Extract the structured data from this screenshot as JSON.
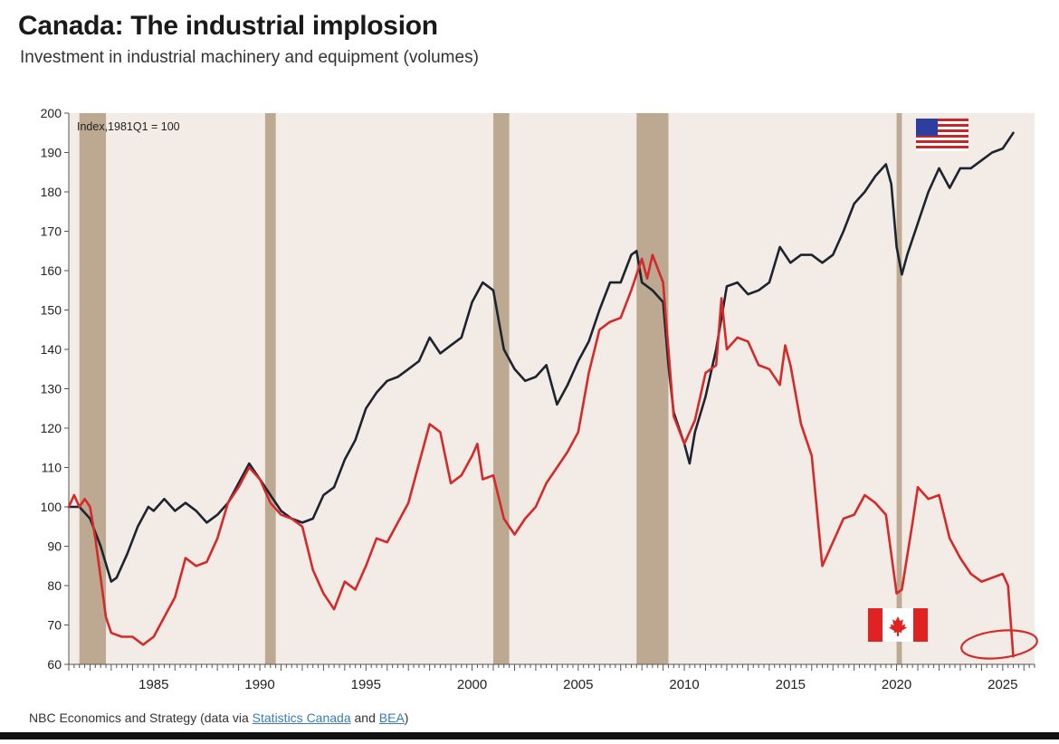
{
  "header": {
    "title": "Canada: The industrial implosion",
    "subtitle": "Investment in industrial machinery and equipment (volumes)"
  },
  "footer": {
    "prefix": "NBC Economics and Strategy (data via ",
    "link1": "Statistics Canada",
    "middle": " and ",
    "link2": "BEA",
    "suffix": ")"
  },
  "colors": {
    "plot_bg": "#f3ebe5",
    "recession": "#bda992",
    "us_line": "#1c2430",
    "canada_line": "#d42a2a",
    "circle": "#d42a2a"
  },
  "icons": {
    "us": "us-flag-icon",
    "canada": "canada-flag-icon",
    "circle": "highlight-circle-icon"
  },
  "chart_data": {
    "type": "line",
    "title": "Canada: The industrial implosion",
    "subtitle": "Investment in industrial machinery and equipment (volumes)",
    "annotation": "Index,1981Q1 = 100",
    "xlabel": "",
    "ylabel": "",
    "xlim": [
      1981,
      2026.5
    ],
    "ylim": [
      60,
      200
    ],
    "yticks": [
      60,
      70,
      80,
      90,
      100,
      110,
      120,
      130,
      140,
      150,
      160,
      170,
      180,
      190,
      200
    ],
    "xtick_labels": [
      "1985",
      "1990",
      "1995",
      "2000",
      "2005",
      "2010",
      "2015",
      "2020",
      "2025"
    ],
    "grid": false,
    "recessions": [
      [
        1981.5,
        1982.75
      ],
      [
        1990.25,
        1990.75
      ],
      [
        2001.0,
        2001.75
      ],
      [
        2007.75,
        2009.25
      ],
      [
        2020.0,
        2020.25
      ]
    ],
    "series": [
      {
        "name": "United States",
        "points": [
          [
            1981,
            100
          ],
          [
            1981.5,
            100
          ],
          [
            1982,
            97
          ],
          [
            1982.5,
            90
          ],
          [
            1983,
            81
          ],
          [
            1983.25,
            82
          ],
          [
            1983.75,
            88
          ],
          [
            1984.25,
            95
          ],
          [
            1984.75,
            100
          ],
          [
            1985,
            99
          ],
          [
            1985.5,
            102
          ],
          [
            1986,
            99
          ],
          [
            1986.5,
            101
          ],
          [
            1987,
            99
          ],
          [
            1987.5,
            96
          ],
          [
            1988,
            98
          ],
          [
            1988.5,
            101
          ],
          [
            1989,
            106
          ],
          [
            1989.5,
            111
          ],
          [
            1990,
            107
          ],
          [
            1990.5,
            103
          ],
          [
            1991,
            99
          ],
          [
            1991.5,
            97
          ],
          [
            1992,
            96
          ],
          [
            1992.5,
            97
          ],
          [
            1993,
            103
          ],
          [
            1993.5,
            105
          ],
          [
            1994,
            112
          ],
          [
            1994.5,
            117
          ],
          [
            1995,
            125
          ],
          [
            1995.5,
            129
          ],
          [
            1996,
            132
          ],
          [
            1996.5,
            133
          ],
          [
            1997,
            135
          ],
          [
            1997.5,
            137
          ],
          [
            1998,
            143
          ],
          [
            1998.5,
            139
          ],
          [
            1999,
            141
          ],
          [
            1999.5,
            143
          ],
          [
            2000,
            152
          ],
          [
            2000.5,
            157
          ],
          [
            2001,
            155
          ],
          [
            2001.5,
            140
          ],
          [
            2002,
            135
          ],
          [
            2002.5,
            132
          ],
          [
            2003,
            133
          ],
          [
            2003.5,
            136
          ],
          [
            2004,
            126
          ],
          [
            2004.5,
            131
          ],
          [
            2005,
            137
          ],
          [
            2005.5,
            142
          ],
          [
            2006,
            150
          ],
          [
            2006.5,
            157
          ],
          [
            2007,
            157
          ],
          [
            2007.5,
            164
          ],
          [
            2007.75,
            165
          ],
          [
            2008,
            157
          ],
          [
            2008.5,
            155
          ],
          [
            2009,
            152
          ],
          [
            2009.25,
            136
          ],
          [
            2009.5,
            124
          ],
          [
            2010,
            116
          ],
          [
            2010.25,
            111
          ],
          [
            2010.5,
            119
          ],
          [
            2011,
            128
          ],
          [
            2011.5,
            140
          ],
          [
            2011.75,
            148
          ],
          [
            2012,
            156
          ],
          [
            2012.5,
            157
          ],
          [
            2013,
            154
          ],
          [
            2013.5,
            155
          ],
          [
            2014,
            157
          ],
          [
            2014.5,
            166
          ],
          [
            2015,
            162
          ],
          [
            2015.5,
            164
          ],
          [
            2016,
            164
          ],
          [
            2016.5,
            162
          ],
          [
            2017,
            164
          ],
          [
            2017.5,
            170
          ],
          [
            2018,
            177
          ],
          [
            2018.5,
            180
          ],
          [
            2019,
            184
          ],
          [
            2019.5,
            187
          ],
          [
            2019.75,
            182
          ],
          [
            2020,
            166
          ],
          [
            2020.25,
            159
          ],
          [
            2020.5,
            164
          ],
          [
            2021,
            172
          ],
          [
            2021.5,
            180
          ],
          [
            2022,
            186
          ],
          [
            2022.5,
            181
          ],
          [
            2023,
            186
          ],
          [
            2023.5,
            186
          ],
          [
            2024,
            188
          ],
          [
            2024.5,
            190
          ],
          [
            2025,
            191
          ],
          [
            2025.5,
            195
          ]
        ]
      },
      {
        "name": "Canada",
        "points": [
          [
            1981,
            100
          ],
          [
            1981.25,
            103
          ],
          [
            1981.5,
            100
          ],
          [
            1981.75,
            102
          ],
          [
            1982,
            100
          ],
          [
            1982.25,
            92
          ],
          [
            1982.5,
            82
          ],
          [
            1982.75,
            72
          ],
          [
            1983,
            68
          ],
          [
            1983.5,
            67
          ],
          [
            1984,
            67
          ],
          [
            1984.5,
            65
          ],
          [
            1985,
            67
          ],
          [
            1985.5,
            72
          ],
          [
            1986,
            77
          ],
          [
            1986.5,
            87
          ],
          [
            1987,
            85
          ],
          [
            1987.5,
            86
          ],
          [
            1988,
            92
          ],
          [
            1988.5,
            101
          ],
          [
            1989,
            105
          ],
          [
            1989.5,
            110
          ],
          [
            1990,
            107
          ],
          [
            1990.5,
            101
          ],
          [
            1991,
            98
          ],
          [
            1991.5,
            97
          ],
          [
            1992,
            95
          ],
          [
            1992.5,
            84
          ],
          [
            1993,
            78
          ],
          [
            1993.5,
            74
          ],
          [
            1994,
            81
          ],
          [
            1994.5,
            79
          ],
          [
            1995,
            85
          ],
          [
            1995.5,
            92
          ],
          [
            1996,
            91
          ],
          [
            1996.5,
            96
          ],
          [
            1997,
            101
          ],
          [
            1997.5,
            111
          ],
          [
            1998,
            121
          ],
          [
            1998.5,
            119
          ],
          [
            1999,
            106
          ],
          [
            1999.5,
            108
          ],
          [
            2000,
            113
          ],
          [
            2000.25,
            116
          ],
          [
            2000.5,
            107
          ],
          [
            2001,
            108
          ],
          [
            2001.5,
            97
          ],
          [
            2002,
            93
          ],
          [
            2002.5,
            97
          ],
          [
            2003,
            100
          ],
          [
            2003.5,
            106
          ],
          [
            2004,
            110
          ],
          [
            2004.5,
            114
          ],
          [
            2005,
            119
          ],
          [
            2005.5,
            134
          ],
          [
            2006,
            145
          ],
          [
            2006.5,
            147
          ],
          [
            2007,
            148
          ],
          [
            2007.5,
            155
          ],
          [
            2008,
            163
          ],
          [
            2008.25,
            158
          ],
          [
            2008.5,
            164
          ],
          [
            2009,
            157
          ],
          [
            2009.25,
            140
          ],
          [
            2009.5,
            123
          ],
          [
            2010,
            116
          ],
          [
            2010.5,
            122
          ],
          [
            2011,
            134
          ],
          [
            2011.5,
            136
          ],
          [
            2011.75,
            153
          ],
          [
            2012,
            140
          ],
          [
            2012.5,
            143
          ],
          [
            2013,
            142
          ],
          [
            2013.5,
            136
          ],
          [
            2014,
            135
          ],
          [
            2014.5,
            131
          ],
          [
            2014.75,
            141
          ],
          [
            2015,
            136
          ],
          [
            2015.5,
            121
          ],
          [
            2016,
            113
          ],
          [
            2016.5,
            85
          ],
          [
            2017,
            91
          ],
          [
            2017.5,
            97
          ],
          [
            2018,
            98
          ],
          [
            2018.5,
            103
          ],
          [
            2019,
            101
          ],
          [
            2019.5,
            98
          ],
          [
            2019.75,
            88
          ],
          [
            2020,
            78
          ],
          [
            2020.25,
            79
          ],
          [
            2020.75,
            96
          ],
          [
            2021,
            105
          ],
          [
            2021.5,
            102
          ],
          [
            2022,
            103
          ],
          [
            2022.5,
            92
          ],
          [
            2023,
            87
          ],
          [
            2023.5,
            83
          ],
          [
            2024,
            81
          ],
          [
            2024.5,
            82
          ],
          [
            2025,
            83
          ],
          [
            2025.25,
            80
          ],
          [
            2025.5,
            62
          ]
        ]
      }
    ]
  }
}
